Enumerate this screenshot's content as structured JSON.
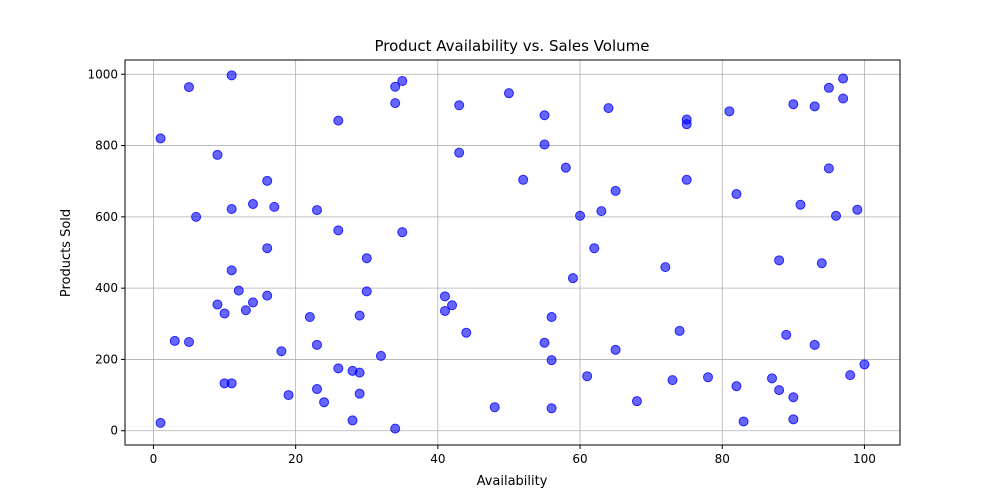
{
  "chart_data": {
    "type": "scatter",
    "title": "Product Availability vs. Sales Volume",
    "xlabel": "Availability",
    "ylabel": "Products Sold",
    "xlim": [
      -4,
      105
    ],
    "ylim": [
      -40,
      1040
    ],
    "xticks": [
      0,
      20,
      40,
      60,
      80,
      100
    ],
    "yticks": [
      0,
      200,
      400,
      600,
      800,
      1000
    ],
    "grid": true,
    "color": "#0000ff",
    "points": [
      [
        1,
        820
      ],
      [
        1,
        22
      ],
      [
        3,
        252
      ],
      [
        5,
        964
      ],
      [
        5,
        249
      ],
      [
        6,
        600
      ],
      [
        9,
        774
      ],
      [
        9,
        354
      ],
      [
        10,
        329
      ],
      [
        10,
        133
      ],
      [
        11,
        997
      ],
      [
        11,
        622
      ],
      [
        11,
        450
      ],
      [
        11,
        133
      ],
      [
        12,
        393
      ],
      [
        13,
        338
      ],
      [
        14,
        636
      ],
      [
        14,
        360
      ],
      [
        16,
        701
      ],
      [
        16,
        512
      ],
      [
        16,
        379
      ],
      [
        17,
        628
      ],
      [
        18,
        223
      ],
      [
        19,
        100
      ],
      [
        22,
        319
      ],
      [
        23,
        619
      ],
      [
        23,
        241
      ],
      [
        23,
        117
      ],
      [
        24,
        80
      ],
      [
        26,
        870
      ],
      [
        26,
        562
      ],
      [
        26,
        175
      ],
      [
        28,
        168
      ],
      [
        28,
        29
      ],
      [
        29,
        323
      ],
      [
        29,
        163
      ],
      [
        29,
        104
      ],
      [
        30,
        484
      ],
      [
        30,
        391
      ],
      [
        32,
        210
      ],
      [
        34,
        965
      ],
      [
        34,
        919
      ],
      [
        34,
        6
      ],
      [
        35,
        981
      ],
      [
        35,
        557
      ],
      [
        41,
        377
      ],
      [
        41,
        336
      ],
      [
        42,
        352
      ],
      [
        43,
        913
      ],
      [
        43,
        780
      ],
      [
        44,
        275
      ],
      [
        48,
        66
      ],
      [
        50,
        947
      ],
      [
        52,
        704
      ],
      [
        55,
        885
      ],
      [
        55,
        803
      ],
      [
        55,
        247
      ],
      [
        56,
        319
      ],
      [
        56,
        198
      ],
      [
        56,
        63
      ],
      [
        58,
        738
      ],
      [
        59,
        428
      ],
      [
        60,
        603
      ],
      [
        61,
        153
      ],
      [
        62,
        512
      ],
      [
        63,
        616
      ],
      [
        64,
        905
      ],
      [
        65,
        673
      ],
      [
        65,
        227
      ],
      [
        68,
        83
      ],
      [
        72,
        459
      ],
      [
        73,
        142
      ],
      [
        74,
        280
      ],
      [
        75,
        873
      ],
      [
        75,
        860
      ],
      [
        75,
        704
      ],
      [
        78,
        150
      ],
      [
        81,
        896
      ],
      [
        82,
        664
      ],
      [
        82,
        125
      ],
      [
        83,
        26
      ],
      [
        87,
        147
      ],
      [
        88,
        478
      ],
      [
        88,
        114
      ],
      [
        89,
        269
      ],
      [
        90,
        916
      ],
      [
        90,
        94
      ],
      [
        90,
        32
      ],
      [
        91,
        634
      ],
      [
        93,
        910
      ],
      [
        93,
        241
      ],
      [
        94,
        470
      ],
      [
        95,
        962
      ],
      [
        95,
        736
      ],
      [
        96,
        603
      ],
      [
        97,
        988
      ],
      [
        97,
        932
      ],
      [
        98,
        156
      ],
      [
        99,
        620
      ],
      [
        100,
        186
      ]
    ]
  }
}
